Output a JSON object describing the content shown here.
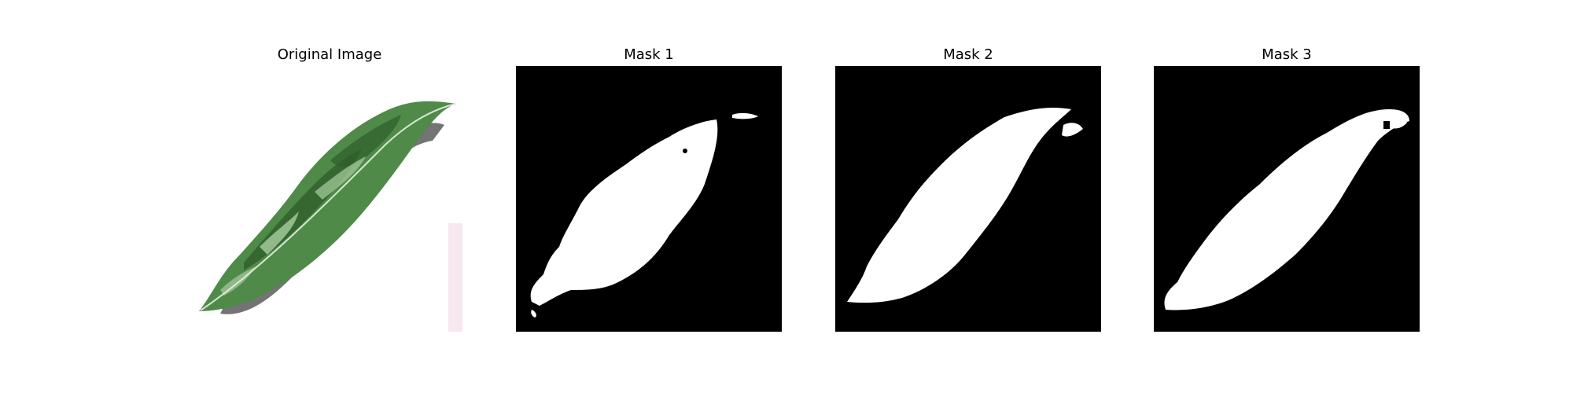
{
  "figure": {
    "panels": [
      {
        "title": "Original Image",
        "kind": "photo"
      },
      {
        "title": "Mask 1",
        "kind": "mask"
      },
      {
        "title": "Mask 2",
        "kind": "mask"
      },
      {
        "title": "Mask 3",
        "kind": "mask"
      }
    ]
  },
  "colors": {
    "background": "#ffffff",
    "mask_background": "#000000",
    "mask_foreground": "#ffffff",
    "leaf_dark": "#2f5e2c",
    "leaf_mid": "#4f8a48",
    "leaf_light": "#9cc293",
    "shadow": "#5c5c5c"
  }
}
